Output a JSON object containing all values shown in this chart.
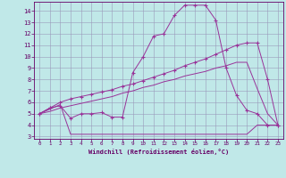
{
  "title": "",
  "xlabel": "Windchill (Refroidissement éolien,°C)",
  "bg_color": "#c0e8e8",
  "line_color": "#993399",
  "grid_color": "#9999bb",
  "xlim": [
    -0.5,
    23.5
  ],
  "ylim": [
    2.8,
    14.8
  ],
  "xticks": [
    0,
    1,
    2,
    3,
    4,
    5,
    6,
    7,
    8,
    9,
    10,
    11,
    12,
    13,
    14,
    15,
    16,
    17,
    18,
    19,
    20,
    21,
    22,
    23
  ],
  "yticks": [
    3,
    4,
    5,
    6,
    7,
    8,
    9,
    10,
    11,
    12,
    13,
    14
  ],
  "line1_x": [
    0,
    1,
    2,
    3,
    4,
    5,
    6,
    7,
    8,
    9,
    10,
    11,
    12,
    13,
    14,
    15,
    16,
    17,
    18,
    19,
    20,
    21,
    22,
    23
  ],
  "line1_y": [
    5.0,
    5.5,
    5.7,
    4.6,
    5.0,
    5.0,
    5.1,
    4.7,
    4.7,
    8.6,
    10.0,
    11.8,
    12.0,
    13.6,
    14.5,
    14.5,
    14.5,
    13.2,
    9.0,
    6.6,
    5.3,
    5.0,
    4.0,
    4.0
  ],
  "line2_x": [
    0,
    2,
    3,
    4,
    5,
    6,
    7,
    8,
    9,
    10,
    11,
    12,
    13,
    14,
    15,
    16,
    17,
    18,
    19,
    20,
    21,
    22,
    23
  ],
  "line2_y": [
    5.0,
    5.8,
    3.2,
    3.2,
    3.2,
    3.2,
    3.2,
    3.2,
    3.2,
    3.2,
    3.2,
    3.2,
    3.2,
    3.2,
    3.2,
    3.2,
    3.2,
    3.2,
    3.2,
    3.2,
    4.0,
    4.0,
    4.0
  ],
  "line3_x": [
    0,
    1,
    2,
    3,
    4,
    5,
    6,
    7,
    8,
    9,
    10,
    11,
    12,
    13,
    14,
    15,
    16,
    17,
    18,
    19,
    20,
    21,
    22,
    23
  ],
  "line3_y": [
    5.0,
    5.5,
    6.0,
    6.3,
    6.5,
    6.7,
    6.9,
    7.1,
    7.4,
    7.6,
    7.9,
    8.2,
    8.5,
    8.8,
    9.2,
    9.5,
    9.8,
    10.2,
    10.6,
    11.0,
    11.2,
    11.2,
    8.0,
    4.0
  ],
  "line4_x": [
    0,
    1,
    2,
    3,
    4,
    5,
    6,
    7,
    8,
    9,
    10,
    11,
    12,
    13,
    14,
    15,
    16,
    17,
    18,
    19,
    20,
    21,
    22,
    23
  ],
  "line4_y": [
    5.0,
    5.2,
    5.5,
    5.7,
    5.9,
    6.1,
    6.3,
    6.5,
    6.8,
    7.0,
    7.3,
    7.5,
    7.8,
    8.0,
    8.3,
    8.5,
    8.7,
    9.0,
    9.2,
    9.5,
    9.5,
    7.2,
    5.0,
    4.0
  ]
}
